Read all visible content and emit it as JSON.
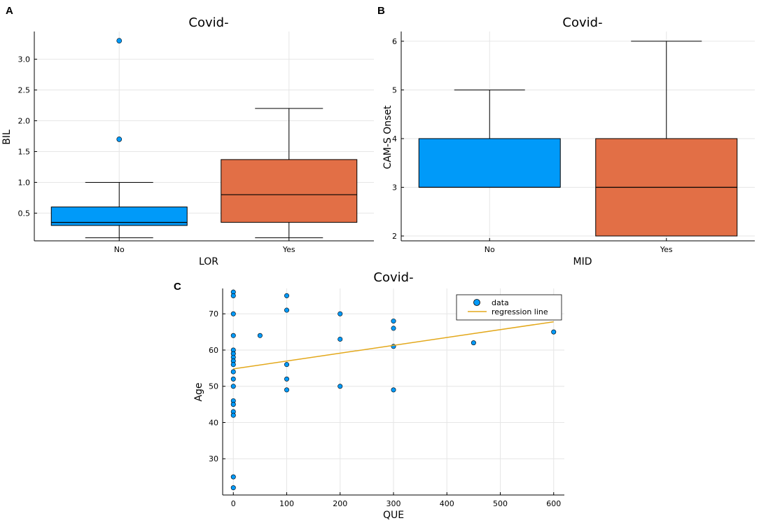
{
  "chart_data": [
    {
      "panel": "A",
      "type": "box",
      "title": "Covid-",
      "xlabel": "LOR",
      "ylabel": "BIL",
      "ylim": [
        0.05,
        3.45
      ],
      "yticks": [
        "0.5",
        "1.0",
        "1.5",
        "2.0",
        "2.5",
        "3.0"
      ],
      "categories": [
        "No",
        "Yes"
      ],
      "boxes": [
        {
          "category": "No",
          "min": 0.1,
          "q1": 0.3,
          "median": 0.35,
          "q3": 0.6,
          "max": 1.0,
          "outliers": [
            1.7,
            3.3
          ],
          "color": "#009af9"
        },
        {
          "category": "Yes",
          "min": 0.1,
          "q1": 0.35,
          "median": 0.8,
          "q3": 1.37,
          "max": 2.2,
          "outliers": [],
          "color": "#e26f46"
        }
      ]
    },
    {
      "panel": "B",
      "type": "box",
      "title": "Covid-",
      "xlabel": "MID",
      "ylabel": "CAM-S Onset",
      "ylim": [
        1.9,
        6.2
      ],
      "yticks": [
        "2",
        "3",
        "4",
        "5",
        "6"
      ],
      "categories": [
        "No",
        "Yes"
      ],
      "boxes": [
        {
          "category": "No",
          "min": 3,
          "q1": 3,
          "median": 3,
          "q3": 4,
          "max": 5,
          "outliers": [],
          "color": "#009af9"
        },
        {
          "category": "Yes",
          "min": 2,
          "q1": 2,
          "median": 3,
          "q3": 4,
          "max": 6,
          "outliers": [],
          "color": "#e26f46"
        }
      ]
    },
    {
      "panel": "C",
      "type": "scatter",
      "title": "Covid-",
      "xlabel": "QUE",
      "ylabel": "Age",
      "xlim": [
        -20,
        620
      ],
      "ylim": [
        20,
        77
      ],
      "xticks": [
        "0",
        "100",
        "200",
        "300",
        "400",
        "500",
        "600"
      ],
      "yticks": [
        "30",
        "40",
        "50",
        "60",
        "70"
      ],
      "legend": {
        "position": "top-right",
        "entries": [
          "data",
          "regression line"
        ]
      },
      "series": [
        {
          "name": "data",
          "color": "#009af9",
          "points": [
            [
              0,
              76
            ],
            [
              0,
              75
            ],
            [
              0,
              70
            ],
            [
              0,
              64
            ],
            [
              0,
              60
            ],
            [
              0,
              59
            ],
            [
              0,
              58
            ],
            [
              0,
              57
            ],
            [
              0,
              56
            ],
            [
              0,
              54
            ],
            [
              0,
              52
            ],
            [
              0,
              50
            ],
            [
              0,
              46
            ],
            [
              0,
              45
            ],
            [
              0,
              43
            ],
            [
              0,
              42
            ],
            [
              0,
              25
            ],
            [
              0,
              22
            ],
            [
              50,
              64
            ],
            [
              100,
              75
            ],
            [
              100,
              71
            ],
            [
              100,
              56
            ],
            [
              100,
              52
            ],
            [
              100,
              49
            ],
            [
              200,
              70
            ],
            [
              200,
              63
            ],
            [
              200,
              50
            ],
            [
              300,
              68
            ],
            [
              300,
              66
            ],
            [
              300,
              61
            ],
            [
              300,
              49
            ],
            [
              450,
              62
            ],
            [
              600,
              65
            ]
          ]
        },
        {
          "name": "regression line",
          "color": "#e3a81b",
          "line": [
            [
              0,
              54.8
            ],
            [
              600,
              67.8
            ]
          ]
        }
      ]
    }
  ]
}
